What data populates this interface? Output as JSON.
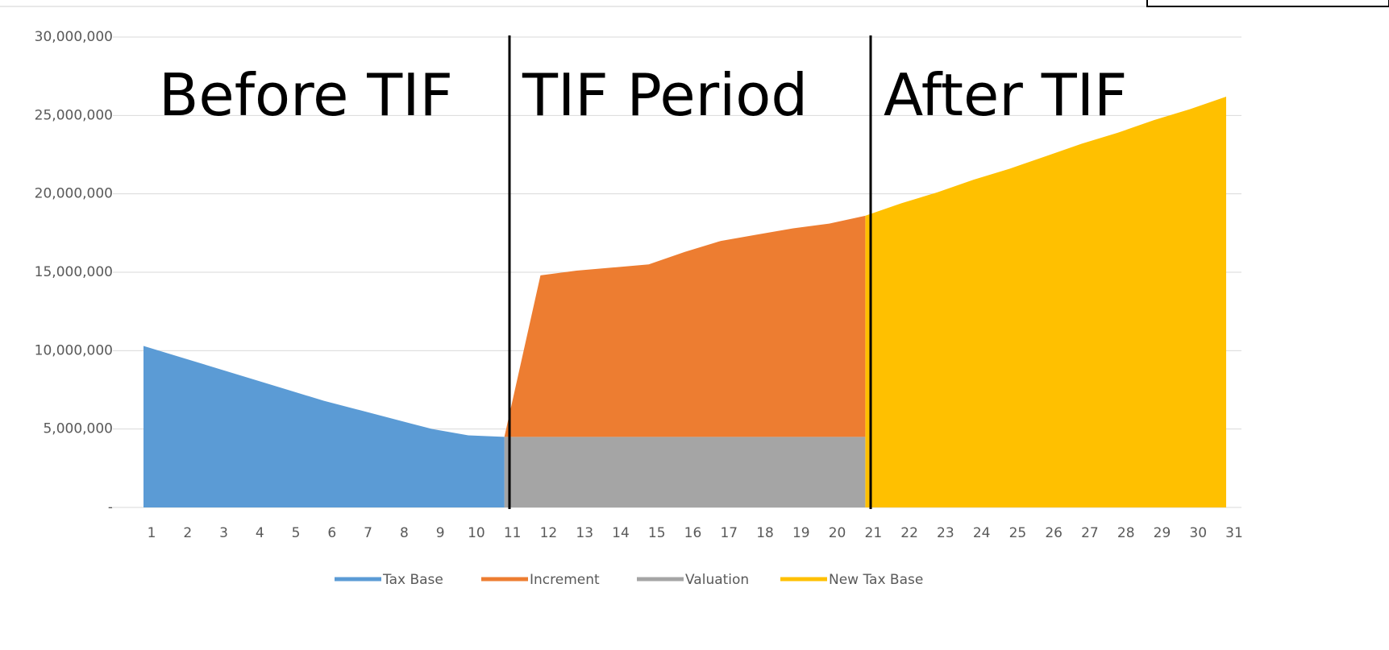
{
  "chart_data": {
    "type": "area",
    "annotations": [
      "Before TIF",
      "TIF Period",
      "After TIF"
    ],
    "categories": [
      "1",
      "2",
      "3",
      "4",
      "5",
      "6",
      "7",
      "8",
      "9",
      "10",
      "11",
      "12",
      "13",
      "14",
      "15",
      "16",
      "17",
      "18",
      "19",
      "20",
      "21",
      "22",
      "23",
      "24",
      "25",
      "26",
      "27",
      "28",
      "29",
      "30",
      "31"
    ],
    "series": [
      {
        "name": "Tax Base",
        "color": "#5b9bd5",
        "values": [
          10300000,
          9600000,
          8900000,
          8200000,
          7500000,
          6800000,
          6200000,
          5600000,
          5000000,
          4600000,
          4500000,
          null,
          null,
          null,
          null,
          null,
          null,
          null,
          null,
          null,
          null,
          null,
          null,
          null,
          null,
          null,
          null,
          null,
          null,
          null,
          null
        ]
      },
      {
        "name": "Increment",
        "color": "#ed7d31",
        "stacked": true,
        "values": [
          null,
          null,
          null,
          null,
          null,
          null,
          null,
          null,
          null,
          null,
          0,
          10300000,
          10600000,
          10800000,
          11000000,
          11800000,
          12500000,
          12900000,
          13300000,
          13600000,
          14100000,
          null,
          null,
          null,
          null,
          null,
          null,
          null,
          null,
          null,
          null
        ]
      },
      {
        "name": "Valuation",
        "color": "#a5a5a5",
        "stacked": true,
        "values": [
          null,
          null,
          null,
          null,
          null,
          null,
          null,
          null,
          null,
          null,
          4500000,
          4500000,
          4500000,
          4500000,
          4500000,
          4500000,
          4500000,
          4500000,
          4500000,
          4500000,
          4500000,
          null,
          null,
          null,
          null,
          null,
          null,
          null,
          null,
          null,
          null
        ]
      },
      {
        "name": "New Tax Base",
        "color": "#ffc000",
        "values": [
          null,
          null,
          null,
          null,
          null,
          null,
          null,
          null,
          null,
          null,
          null,
          null,
          null,
          null,
          null,
          null,
          null,
          null,
          null,
          null,
          18600000,
          19400000,
          20100000,
          20900000,
          21600000,
          22400000,
          23200000,
          23900000,
          24700000,
          25400000,
          26200000
        ]
      }
    ],
    "ylim": [
      0,
      30000000
    ],
    "yticks": [
      {
        "value": 0,
        "label": "-"
      },
      {
        "value": 5000000,
        "label": "5,000,000"
      },
      {
        "value": 10000000,
        "label": "10,000,000"
      },
      {
        "value": 15000000,
        "label": "15,000,000"
      },
      {
        "value": 20000000,
        "label": "20,000,000"
      },
      {
        "value": 25000000,
        "label": "25,000,000"
      },
      {
        "value": 30000000,
        "label": "30,000,000"
      }
    ],
    "grid": true
  }
}
